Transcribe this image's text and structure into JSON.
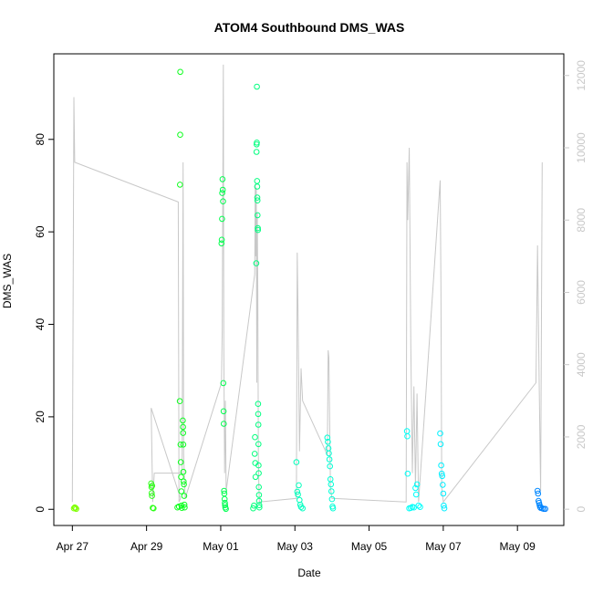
{
  "chart_data": {
    "type": "scatter",
    "title": "ATOM4 Southbound DMS_WAS",
    "xlabel": "Date",
    "ylabel": "DMS_WAS",
    "xlim": [
      "2016-04-26T12:00",
      "2016-05-10T06:00"
    ],
    "ylim": [
      -3.5,
      98.5
    ],
    "y2lim": [
      -450,
      12600
    ],
    "x_ticks": [
      {
        "date": "2016-04-27",
        "label": "Apr 27"
      },
      {
        "date": "2016-04-29",
        "label": "Apr 29"
      },
      {
        "date": "2016-05-01",
        "label": "May 01"
      },
      {
        "date": "2016-05-03",
        "label": "May 03"
      },
      {
        "date": "2016-05-05",
        "label": "May 05"
      },
      {
        "date": "2016-05-07",
        "label": "May 07"
      },
      {
        "date": "2016-05-09",
        "label": "May 09"
      }
    ],
    "y_ticks": [
      "0",
      "20",
      "40",
      "60",
      "80"
    ],
    "y2_ticks": [
      "0",
      "2000",
      "4000",
      "6000",
      "8000",
      "10000",
      "12000"
    ],
    "grid": false,
    "colors": {
      "points_gradient": [
        "#80ff00",
        "#00ff20",
        "#00ffcc",
        "#00ffff",
        "#0080ff"
      ],
      "secondary_line": "#c8c8c8",
      "secondary_axis": "#c8c8c8",
      "axis": "#000000"
    },
    "series": [
      {
        "marker": "open-circle",
        "axis": "left",
        "points": [
          {
            "x": "2016-04-27T01:00",
            "y": 0.2
          },
          {
            "x": "2016-04-27T01:30",
            "y": 0.4
          },
          {
            "x": "2016-04-27T02:00",
            "y": 0.3
          },
          {
            "x": "2016-04-27T02:30",
            "y": 0.1
          },
          {
            "x": "2016-04-29T03:00",
            "y": 5.6
          },
          {
            "x": "2016-04-29T03:10",
            "y": 4.8
          },
          {
            "x": "2016-04-29T03:20",
            "y": 3.5
          },
          {
            "x": "2016-04-29T03:30",
            "y": 2.9
          },
          {
            "x": "2016-04-29T03:40",
            "y": 5.1
          },
          {
            "x": "2016-04-29T04:00",
            "y": 0.3
          },
          {
            "x": "2016-04-29T04:30",
            "y": 0.2
          },
          {
            "x": "2016-04-29T20:00",
            "y": 0.4
          },
          {
            "x": "2016-04-29T21:00",
            "y": 0.6
          },
          {
            "x": "2016-04-29T21:30",
            "y": 23.4
          },
          {
            "x": "2016-04-29T21:40",
            "y": 70.2
          },
          {
            "x": "2016-04-29T21:45",
            "y": 81.0
          },
          {
            "x": "2016-04-29T21:50",
            "y": 94.6
          },
          {
            "x": "2016-04-29T22:00",
            "y": 14.0
          },
          {
            "x": "2016-04-29T22:10",
            "y": 10.2
          },
          {
            "x": "2016-04-29T22:20",
            "y": 7.0
          },
          {
            "x": "2016-04-29T22:30",
            "y": 3.9
          },
          {
            "x": "2016-04-29T22:40",
            "y": 0.8
          },
          {
            "x": "2016-04-29T22:50",
            "y": 0.3
          },
          {
            "x": "2016-04-29T23:30",
            "y": 19.2
          },
          {
            "x": "2016-04-29T23:35",
            "y": 17.8
          },
          {
            "x": "2016-04-29T23:40",
            "y": 16.5
          },
          {
            "x": "2016-04-29T23:45",
            "y": 14.0
          },
          {
            "x": "2016-04-29T23:50",
            "y": 8.1
          },
          {
            "x": "2016-04-30T00:00",
            "y": 6.0
          },
          {
            "x": "2016-04-30T00:10",
            "y": 5.4
          },
          {
            "x": "2016-04-30T00:20",
            "y": 2.9
          },
          {
            "x": "2016-04-30T00:30",
            "y": 1.0
          },
          {
            "x": "2016-04-30T00:40",
            "y": 0.4
          },
          {
            "x": "2016-05-01T00:30",
            "y": 57.5
          },
          {
            "x": "2016-05-01T00:40",
            "y": 58.3
          },
          {
            "x": "2016-05-01T00:50",
            "y": 62.8
          },
          {
            "x": "2016-05-01T01:00",
            "y": 68.4
          },
          {
            "x": "2016-05-01T01:10",
            "y": 71.4
          },
          {
            "x": "2016-05-01T01:20",
            "y": 69.1
          },
          {
            "x": "2016-05-01T01:30",
            "y": 66.6
          },
          {
            "x": "2016-05-01T01:40",
            "y": 27.3
          },
          {
            "x": "2016-05-01T01:50",
            "y": 21.2
          },
          {
            "x": "2016-05-01T02:00",
            "y": 18.5
          },
          {
            "x": "2016-05-01T02:10",
            "y": 4.0
          },
          {
            "x": "2016-05-01T02:20",
            "y": 3.4
          },
          {
            "x": "2016-05-01T02:30",
            "y": 2.2
          },
          {
            "x": "2016-05-01T02:40",
            "y": 1.4
          },
          {
            "x": "2016-05-01T02:50",
            "y": 0.9
          },
          {
            "x": "2016-05-01T03:00",
            "y": 0.4
          },
          {
            "x": "2016-05-01T03:20",
            "y": 0.1
          },
          {
            "x": "2016-05-01T21:00",
            "y": 0.2
          },
          {
            "x": "2016-05-01T21:30",
            "y": 0.8
          },
          {
            "x": "2016-05-01T22:00",
            "y": 12.0
          },
          {
            "x": "2016-05-01T22:10",
            "y": 15.6
          },
          {
            "x": "2016-05-01T22:20",
            "y": 10.0
          },
          {
            "x": "2016-05-01T22:30",
            "y": 7.0
          },
          {
            "x": "2016-05-01T23:00",
            "y": 53.2
          },
          {
            "x": "2016-05-01T23:10",
            "y": 77.3
          },
          {
            "x": "2016-05-01T23:15",
            "y": 78.9
          },
          {
            "x": "2016-05-01T23:20",
            "y": 79.3
          },
          {
            "x": "2016-05-01T23:25",
            "y": 91.4
          },
          {
            "x": "2016-05-01T23:30",
            "y": 71.0
          },
          {
            "x": "2016-05-01T23:35",
            "y": 69.8
          },
          {
            "x": "2016-05-01T23:40",
            "y": 67.4
          },
          {
            "x": "2016-05-01T23:45",
            "y": 66.8
          },
          {
            "x": "2016-05-01T23:50",
            "y": 63.6
          },
          {
            "x": "2016-05-02T00:00",
            "y": 60.8
          },
          {
            "x": "2016-05-02T00:05",
            "y": 60.4
          },
          {
            "x": "2016-05-02T00:10",
            "y": 22.8
          },
          {
            "x": "2016-05-02T00:15",
            "y": 20.6
          },
          {
            "x": "2016-05-02T00:20",
            "y": 18.3
          },
          {
            "x": "2016-05-02T00:25",
            "y": 14.1
          },
          {
            "x": "2016-05-02T00:30",
            "y": 9.5
          },
          {
            "x": "2016-05-02T00:35",
            "y": 7.8
          },
          {
            "x": "2016-05-02T00:40",
            "y": 4.8
          },
          {
            "x": "2016-05-02T00:45",
            "y": 3.1
          },
          {
            "x": "2016-05-02T00:50",
            "y": 1.8
          },
          {
            "x": "2016-05-02T00:55",
            "y": 0.9
          },
          {
            "x": "2016-05-02T01:00",
            "y": 0.4
          },
          {
            "x": "2016-05-03T01:00",
            "y": 10.2
          },
          {
            "x": "2016-05-03T01:30",
            "y": 3.8
          },
          {
            "x": "2016-05-03T02:00",
            "y": 3.2
          },
          {
            "x": "2016-05-03T02:30",
            "y": 5.2
          },
          {
            "x": "2016-05-03T03:00",
            "y": 2.0
          },
          {
            "x": "2016-05-03T03:30",
            "y": 1.0
          },
          {
            "x": "2016-05-03T04:00",
            "y": 0.5
          },
          {
            "x": "2016-05-03T05:00",
            "y": 0.2
          },
          {
            "x": "2016-05-03T21:00",
            "y": 15.5
          },
          {
            "x": "2016-05-03T21:20",
            "y": 14.6
          },
          {
            "x": "2016-05-03T21:40",
            "y": 13.2
          },
          {
            "x": "2016-05-03T22:00",
            "y": 12.1
          },
          {
            "x": "2016-05-03T22:20",
            "y": 10.8
          },
          {
            "x": "2016-05-03T22:40",
            "y": 9.3
          },
          {
            "x": "2016-05-03T23:00",
            "y": 6.5
          },
          {
            "x": "2016-05-03T23:20",
            "y": 5.4
          },
          {
            "x": "2016-05-03T23:40",
            "y": 3.9
          },
          {
            "x": "2016-05-04T00:00",
            "y": 2.2
          },
          {
            "x": "2016-05-04T00:20",
            "y": 0.6
          },
          {
            "x": "2016-05-04T00:40",
            "y": 0.2
          },
          {
            "x": "2016-05-06T00:30",
            "y": 16.9
          },
          {
            "x": "2016-05-06T00:45",
            "y": 15.8
          },
          {
            "x": "2016-05-06T01:00",
            "y": 7.7
          },
          {
            "x": "2016-05-06T02:00",
            "y": 0.2
          },
          {
            "x": "2016-05-06T03:00",
            "y": 0.3
          },
          {
            "x": "2016-05-06T04:00",
            "y": 0.5
          },
          {
            "x": "2016-05-06T05:00",
            "y": 0.4
          },
          {
            "x": "2016-05-06T06:00",
            "y": 4.6
          },
          {
            "x": "2016-05-06T06:30",
            "y": 3.2
          },
          {
            "x": "2016-05-06T07:00",
            "y": 5.4
          },
          {
            "x": "2016-05-06T08:00",
            "y": 0.8
          },
          {
            "x": "2016-05-06T09:00",
            "y": 0.5
          },
          {
            "x": "2016-05-06T22:00",
            "y": 16.4
          },
          {
            "x": "2016-05-06T22:20",
            "y": 14.1
          },
          {
            "x": "2016-05-06T22:40",
            "y": 9.5
          },
          {
            "x": "2016-05-06T23:00",
            "y": 7.7
          },
          {
            "x": "2016-05-06T23:20",
            "y": 7.2
          },
          {
            "x": "2016-05-06T23:40",
            "y": 5.3
          },
          {
            "x": "2016-05-07T00:00",
            "y": 3.4
          },
          {
            "x": "2016-05-07T00:20",
            "y": 0.8
          },
          {
            "x": "2016-05-07T00:40",
            "y": 0.2
          },
          {
            "x": "2016-05-09T13:00",
            "y": 4.0
          },
          {
            "x": "2016-05-09T13:20",
            "y": 3.4
          },
          {
            "x": "2016-05-09T13:40",
            "y": 1.8
          },
          {
            "x": "2016-05-09T14:00",
            "y": 1.4
          },
          {
            "x": "2016-05-09T14:20",
            "y": 0.9
          },
          {
            "x": "2016-05-09T14:40",
            "y": 0.5
          },
          {
            "x": "2016-05-09T15:00",
            "y": 0.3
          },
          {
            "x": "2016-05-09T16:00",
            "y": 0.2
          },
          {
            "x": "2016-05-09T17:00",
            "y": 0.1
          },
          {
            "x": "2016-05-09T18:00",
            "y": 0.1
          }
        ]
      },
      {
        "marker": "line",
        "axis": "right",
        "points": [
          {
            "x": "2016-04-27T00:00",
            "y": 200
          },
          {
            "x": "2016-04-27T01:00",
            "y": 11400
          },
          {
            "x": "2016-04-27T01:30",
            "y": 9600
          },
          {
            "x": "2016-04-29T20:30",
            "y": 8500
          },
          {
            "x": "2016-04-29T21:00",
            "y": 200
          },
          {
            "x": "2016-04-29T22:00",
            "y": 300
          },
          {
            "x": "2016-04-29T03:00",
            "y": 2800
          },
          {
            "x": "2016-04-29T04:00",
            "y": 200
          },
          {
            "x": "2016-04-29T05:00",
            "y": 1000
          },
          {
            "x": "2016-04-29T23:00",
            "y": 1000
          },
          {
            "x": "2016-04-29T23:40",
            "y": 9600
          },
          {
            "x": "2016-04-30T00:00",
            "y": 1500
          },
          {
            "x": "2016-04-30T01:00",
            "y": 300
          },
          {
            "x": "2016-05-01T00:30",
            "y": 3500
          },
          {
            "x": "2016-05-01T01:00",
            "y": 5000
          },
          {
            "x": "2016-05-01T01:40",
            "y": 12300
          },
          {
            "x": "2016-05-01T02:00",
            "y": 4600
          },
          {
            "x": "2016-05-01T02:30",
            "y": 1000
          },
          {
            "x": "2016-05-01T03:00",
            "y": 3000
          },
          {
            "x": "2016-05-01T03:30",
            "y": 500
          },
          {
            "x": "2016-05-01T22:00",
            "y": 6500
          },
          {
            "x": "2016-05-01T22:20",
            "y": 9000
          },
          {
            "x": "2016-05-01T22:40",
            "y": 7000
          },
          {
            "x": "2016-05-01T23:00",
            "y": 8900
          },
          {
            "x": "2016-05-01T23:20",
            "y": 3500
          },
          {
            "x": "2016-05-01T23:40",
            "y": 8200
          },
          {
            "x": "2016-05-02T00:00",
            "y": 6000
          },
          {
            "x": "2016-05-02T00:20",
            "y": 1500
          },
          {
            "x": "2016-05-02T00:40",
            "y": 700
          },
          {
            "x": "2016-05-02T01:00",
            "y": 200
          },
          {
            "x": "2016-05-03T01:00",
            "y": 300
          },
          {
            "x": "2016-05-03T01:30",
            "y": 7100
          },
          {
            "x": "2016-05-03T02:00",
            "y": 5600
          },
          {
            "x": "2016-05-03T03:00",
            "y": 1600
          },
          {
            "x": "2016-05-03T04:00",
            "y": 3900
          },
          {
            "x": "2016-05-03T05:00",
            "y": 3000
          },
          {
            "x": "2016-05-03T21:00",
            "y": 1500
          },
          {
            "x": "2016-05-03T21:30",
            "y": 4400
          },
          {
            "x": "2016-05-03T22:00",
            "y": 4200
          },
          {
            "x": "2016-05-03T23:00",
            "y": 600
          },
          {
            "x": "2016-05-04T00:00",
            "y": 300
          },
          {
            "x": "2016-05-06T00:00",
            "y": 200
          },
          {
            "x": "2016-05-06T00:30",
            "y": 9600
          },
          {
            "x": "2016-05-06T01:00",
            "y": 8000
          },
          {
            "x": "2016-05-06T02:00",
            "y": 10000
          },
          {
            "x": "2016-05-06T03:00",
            "y": 4500
          },
          {
            "x": "2016-05-06T04:00",
            "y": 1000
          },
          {
            "x": "2016-05-06T05:00",
            "y": 3400
          },
          {
            "x": "2016-05-06T06:00",
            "y": 600
          },
          {
            "x": "2016-05-06T07:00",
            "y": 3200
          },
          {
            "x": "2016-05-06T08:00",
            "y": 200
          },
          {
            "x": "2016-05-06T22:00",
            "y": 9100
          },
          {
            "x": "2016-05-06T22:30",
            "y": 6200
          },
          {
            "x": "2016-05-06T23:00",
            "y": 600
          },
          {
            "x": "2016-05-07T00:00",
            "y": 200
          },
          {
            "x": "2016-05-09T12:00",
            "y": 3500
          },
          {
            "x": "2016-05-09T13:00",
            "y": 7300
          },
          {
            "x": "2016-05-09T14:00",
            "y": 3700
          },
          {
            "x": "2016-05-09T15:00",
            "y": 500
          },
          {
            "x": "2016-05-09T16:00",
            "y": 9600
          }
        ]
      }
    ]
  }
}
